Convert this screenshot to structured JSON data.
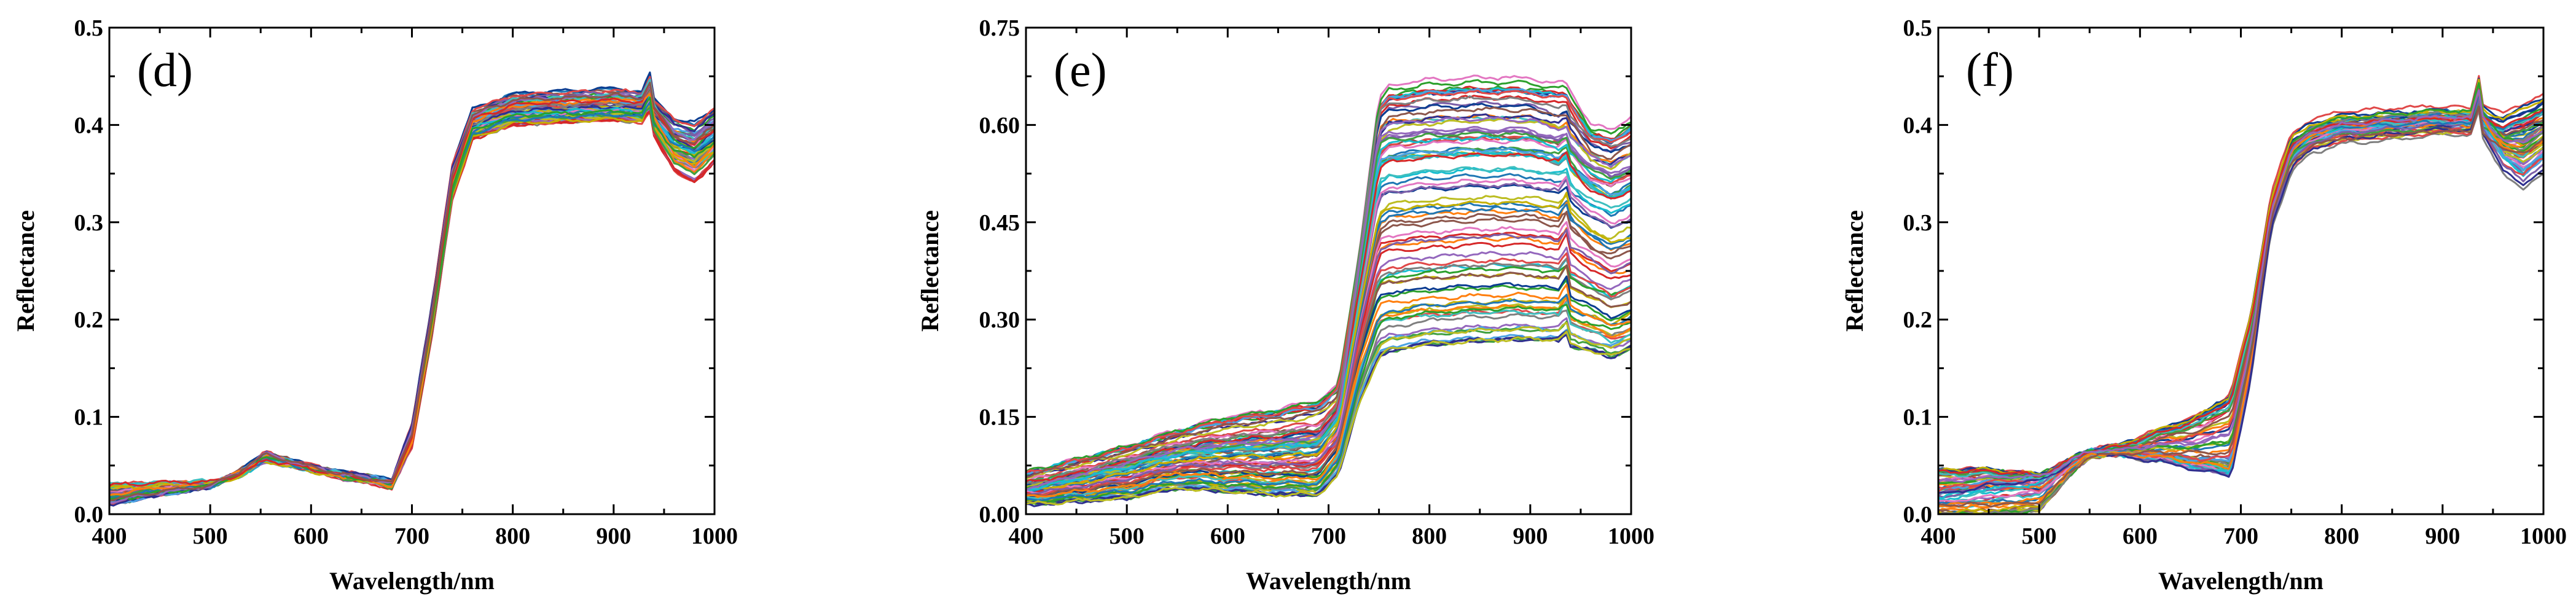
{
  "chart_data": [
    {
      "type": "line",
      "panel_label": "(d)",
      "xlabel": "Wavelength/nm",
      "ylabel": "Reflectance",
      "xlim": [
        400,
        1000
      ],
      "ylim": [
        0,
        0.5
      ],
      "xticks": [
        400,
        500,
        600,
        700,
        800,
        900,
        1000
      ],
      "yticks": [
        "0.0",
        "0.1",
        "0.2",
        "0.3",
        "0.4",
        "0.5"
      ],
      "ytick_values": [
        0,
        0.1,
        0.2,
        0.3,
        0.4,
        0.5
      ],
      "grid": false,
      "legend": "none",
      "x": [
        400,
        450,
        500,
        530,
        555,
        580,
        620,
        660,
        680,
        700,
        720,
        740,
        760,
        800,
        900,
        930,
        935,
        940,
        960,
        980,
        1000
      ],
      "series_count": 60,
      "series": [
        {
          "values": [
            0.03,
            0.032,
            0.033,
            0.04,
            0.055,
            0.05,
            0.042,
            0.035,
            0.03,
            0.08,
            0.2,
            0.34,
            0.4,
            0.415,
            0.42,
            0.418,
            0.44,
            0.41,
            0.385,
            0.375,
            0.39
          ]
        },
        {
          "values": [
            0.02,
            0.026,
            0.03,
            0.042,
            0.06,
            0.052,
            0.04,
            0.032,
            0.028,
            0.07,
            0.19,
            0.33,
            0.395,
            0.41,
            0.415,
            0.412,
            0.43,
            0.4,
            0.36,
            0.35,
            0.37
          ]
        },
        {
          "values": [
            0.01,
            0.02,
            0.028,
            0.044,
            0.062,
            0.054,
            0.044,
            0.038,
            0.034,
            0.09,
            0.21,
            0.35,
            0.405,
            0.42,
            0.425,
            0.422,
            0.445,
            0.415,
            0.395,
            0.39,
            0.405
          ]
        }
      ],
      "colors": [
        "#1f77b4",
        "#ff7f0e",
        "#2ca02c",
        "#d62728",
        "#9467bd",
        "#8c564b",
        "#e377c2",
        "#7f7f7f",
        "#bcbd22",
        "#17becf",
        "#0b3d91",
        "#c5b000",
        "#4ba3e3",
        "#40a040",
        "#e04848",
        "#7b5ea7",
        "#2f2f8f",
        "#3fbfbf"
      ]
    },
    {
      "type": "line",
      "panel_label": "(e)",
      "xlabel": "Wavelength/nm",
      "ylabel": "Reflectance",
      "xlim": [
        400,
        1000
      ],
      "ylim": [
        0,
        0.75
      ],
      "xticks": [
        400,
        500,
        600,
        700,
        800,
        900,
        1000
      ],
      "yticks": [
        "0.00",
        "0.15",
        "0.30",
        "0.45",
        "0.60",
        "0.75"
      ],
      "ytick_values": [
        0,
        0.15,
        0.3,
        0.45,
        0.6,
        0.75
      ],
      "grid": false,
      "legend": "none",
      "x": [
        400,
        450,
        500,
        550,
        600,
        650,
        690,
        710,
        730,
        750,
        760,
        800,
        850,
        900,
        930,
        935,
        940,
        960,
        980,
        1000
      ],
      "series_count": 80,
      "series": [
        {
          "values": [
            0.065,
            0.085,
            0.105,
            0.13,
            0.15,
            0.162,
            0.175,
            0.2,
            0.4,
            0.64,
            0.66,
            0.668,
            0.672,
            0.67,
            0.662,
            0.665,
            0.65,
            0.6,
            0.59,
            0.612
          ]
        },
        {
          "values": [
            0.04,
            0.06,
            0.08,
            0.1,
            0.11,
            0.115,
            0.12,
            0.16,
            0.38,
            0.6,
            0.61,
            0.615,
            0.618,
            0.616,
            0.6,
            0.61,
            0.59,
            0.56,
            0.545,
            0.56
          ]
        },
        {
          "values": [
            0.035,
            0.045,
            0.06,
            0.08,
            0.085,
            0.085,
            0.09,
            0.13,
            0.3,
            0.44,
            0.45,
            0.455,
            0.46,
            0.46,
            0.45,
            0.48,
            0.445,
            0.42,
            0.4,
            0.41
          ]
        },
        {
          "values": [
            0.025,
            0.032,
            0.04,
            0.06,
            0.055,
            0.05,
            0.05,
            0.09,
            0.22,
            0.3,
            0.305,
            0.31,
            0.315,
            0.316,
            0.31,
            0.34,
            0.3,
            0.285,
            0.27,
            0.28
          ]
        },
        {
          "values": [
            0.015,
            0.02,
            0.025,
            0.04,
            0.035,
            0.03,
            0.03,
            0.06,
            0.17,
            0.24,
            0.25,
            0.26,
            0.265,
            0.268,
            0.265,
            0.28,
            0.258,
            0.25,
            0.24,
            0.255
          ]
        }
      ],
      "colors": [
        "#17becf",
        "#8c564b",
        "#d62728",
        "#2ca02c",
        "#1f77b4",
        "#ff7f0e",
        "#9467bd",
        "#bcbd22",
        "#e377c2",
        "#7f7f7f",
        "#0b3d91",
        "#c5b000",
        "#4ba3e3",
        "#40a040",
        "#e04848",
        "#7b5ea7",
        "#2f2f8f",
        "#3fbfbf"
      ]
    },
    {
      "type": "line",
      "panel_label": "(f)",
      "xlabel": "Wavelength/nm",
      "ylabel": "Reflectance",
      "xlim": [
        400,
        1000
      ],
      "ylim": [
        0,
        0.5
      ],
      "xticks": [
        400,
        500,
        600,
        700,
        800,
        900,
        1000
      ],
      "yticks": [
        "0.0",
        "0.1",
        "0.2",
        "0.3",
        "0.4",
        "0.5"
      ],
      "ytick_values": [
        0,
        0.1,
        0.2,
        0.3,
        0.4,
        0.5
      ],
      "grid": false,
      "legend": "none",
      "x": [
        400,
        450,
        500,
        530,
        550,
        580,
        620,
        660,
        690,
        710,
        730,
        750,
        770,
        800,
        900,
        930,
        935,
        940,
        960,
        980,
        1000
      ],
      "series_count": 60,
      "series": [
        {
          "values": [
            0.045,
            0.045,
            0.04,
            0.055,
            0.065,
            0.07,
            0.085,
            0.1,
            0.12,
            0.2,
            0.32,
            0.38,
            0.395,
            0.402,
            0.408,
            0.405,
            0.445,
            0.41,
            0.4,
            0.41,
            0.42
          ]
        },
        {
          "values": [
            0.02,
            0.03,
            0.035,
            0.052,
            0.065,
            0.06,
            0.055,
            0.045,
            0.04,
            0.14,
            0.3,
            0.36,
            0.38,
            0.39,
            0.4,
            0.4,
            0.43,
            0.395,
            0.36,
            0.34,
            0.36
          ]
        },
        {
          "values": [
            0.0,
            0.0,
            0.005,
            0.04,
            0.06,
            0.062,
            0.06,
            0.055,
            0.05,
            0.16,
            0.31,
            0.37,
            0.388,
            0.396,
            0.404,
            0.402,
            0.438,
            0.402,
            0.38,
            0.375,
            0.39
          ]
        }
      ],
      "colors": [
        "#1f77b4",
        "#2ca02c",
        "#ff7f0e",
        "#d62728",
        "#9467bd",
        "#8c564b",
        "#e377c2",
        "#7f7f7f",
        "#bcbd22",
        "#17becf",
        "#0b3d91",
        "#c5b000",
        "#4ba3e3",
        "#40a040",
        "#e04848",
        "#7b5ea7",
        "#2f2f8f",
        "#3fbfbf"
      ]
    }
  ]
}
